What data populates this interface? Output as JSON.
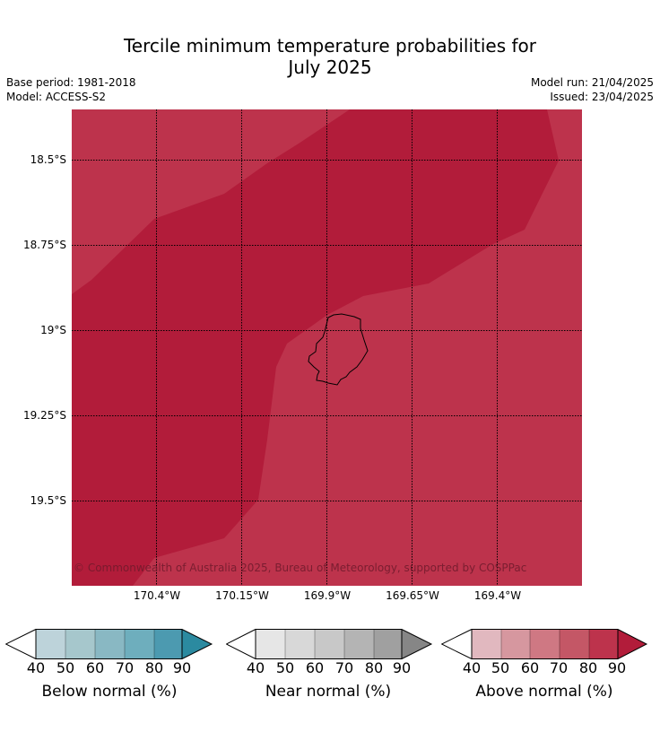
{
  "title_line1": "Tercile minimum temperature probabilities for",
  "title_line2": "July 2025",
  "base_period": "Base period: 1981-2018",
  "model": "Model: ACCESS-S2",
  "model_run": "Model run: 21/04/2025",
  "issued": "Issued: 23/04/2025",
  "copyright": "© Commonwealth of Australia 2025, Bureau of Meteorology, supported by COSPPac",
  "lat_labels": [
    "18.5°S",
    "18.75°S",
    "19°S",
    "19.25°S",
    "19.5°S"
  ],
  "lon_labels": [
    "170.4°W",
    "170.15°W",
    "169.9°W",
    "169.65°W",
    "169.4°W"
  ],
  "colors": {
    "map_80_90": "#bd334c",
    "map_90_plus": "#b21c3a",
    "below": [
      "#bdd3da",
      "#a6c7cc",
      "#89b8c3",
      "#6eaebd",
      "#4c9ab0",
      "#2b8aa0"
    ],
    "near": [
      "#e6e6e6",
      "#d8d8d8",
      "#c8c8c8",
      "#b4b4b4",
      "#a0a0a0",
      "#868686"
    ],
    "above": [
      "#e1b8bf",
      "#d6979f",
      "#cf7883",
      "#c45766",
      "#bd334c",
      "#b21c3a"
    ]
  },
  "colorbars": [
    {
      "label": "Below normal (%)",
      "ticks": [
        "40",
        "50",
        "60",
        "70",
        "80",
        "90"
      ]
    },
    {
      "label": "Near normal (%)",
      "ticks": [
        "40",
        "50",
        "60",
        "70",
        "80",
        "90"
      ]
    },
    {
      "label": "Above normal (%)",
      "ticks": [
        "40",
        "50",
        "60",
        "70",
        "80",
        "90"
      ]
    }
  ]
}
